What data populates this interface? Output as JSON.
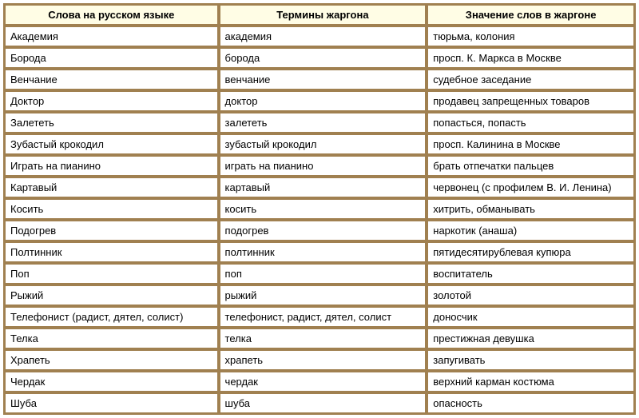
{
  "table": {
    "columns": [
      "Слова на русском языке",
      "Термины жаргона",
      "Значение слов в жаргоне"
    ],
    "rows": [
      [
        "Академия",
        "академия",
        "тюрьма, колония"
      ],
      [
        "Борода",
        "борода",
        "просп. К. Маркса в Москве"
      ],
      [
        "Венчание",
        "венчание",
        "судебное заседание"
      ],
      [
        "Доктор",
        "доктор",
        "продавец запрещенных товаров"
      ],
      [
        "Залететь",
        "залететь",
        "попасться, попасть"
      ],
      [
        "Зубастый крокодил",
        "зубастый крокодил",
        "просп. Калинина в Москве"
      ],
      [
        "Играть на пианино",
        "играть на пианино",
        "брать отпечатки пальцев"
      ],
      [
        "Картавый",
        "картавый",
        "червонец (с профилем В. И. Ленина)"
      ],
      [
        "Косить",
        "косить",
        "хитрить, обманывать"
      ],
      [
        "Подогрев",
        "подогрев",
        "наркотик (анаша)"
      ],
      [
        "Полтинник",
        "полтинник",
        "пятидесятирублевая купюра"
      ],
      [
        "Поп",
        "поп",
        "воспитатель"
      ],
      [
        "Рыжий",
        "рыжий",
        "золотой"
      ],
      [
        "Телефонист (радист, дятел, солист)",
        "телефонист, радист, дятел, солист",
        "доносчик"
      ],
      [
        "Телка",
        "телка",
        "престижная девушка"
      ],
      [
        "Храпеть",
        "храпеть",
        "запугивать"
      ],
      [
        "Чердак",
        "чердак",
        "верхний карман костюма"
      ],
      [
        "Шуба",
        "шуба",
        "опасность"
      ]
    ],
    "header_bg": "#fffde5",
    "cell_bg": "#ffffff",
    "border_color": "#a08050",
    "font_size": 13
  }
}
